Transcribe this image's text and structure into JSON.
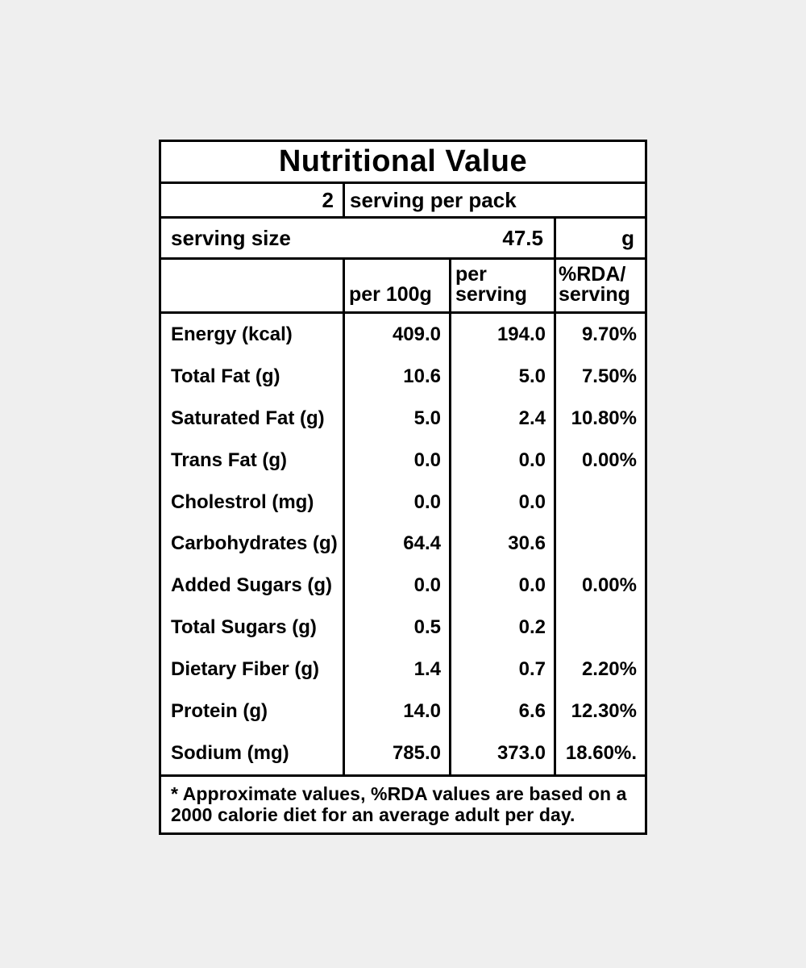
{
  "canvas": {
    "background_color": "#efefef",
    "table_background_color": "#ffffff",
    "border_color": "#000000",
    "text_color": "#000000"
  },
  "label": {
    "title": "Nutritional Value",
    "pack_row": {
      "count": "2",
      "text": "serving per pack"
    },
    "serving_size_row": {
      "label": "serving size",
      "value": "47.5",
      "unit": "g"
    },
    "header": {
      "per_100g": "per 100g",
      "per_serving": [
        "per",
        "serving"
      ],
      "rda": [
        "%RDA/",
        "serving"
      ]
    },
    "rows": [
      {
        "label": "Energy (kcal)",
        "per_100g": "409.0",
        "per_serving": "194.0",
        "rda": "9.70%"
      },
      {
        "label": "Total Fat (g)",
        "per_100g": "10.6",
        "per_serving": "5.0",
        "rda": "7.50%"
      },
      {
        "label": "Saturated Fat (g)",
        "per_100g": "5.0",
        "per_serving": "2.4",
        "rda": "10.80%"
      },
      {
        "label": "Trans Fat (g)",
        "per_100g": "0.0",
        "per_serving": "0.0",
        "rda": "0.00%"
      },
      {
        "label": "Cholestrol (mg)",
        "per_100g": "0.0",
        "per_serving": "0.0",
        "rda": ""
      },
      {
        "label": "Carbohydrates (g)",
        "per_100g": "64.4",
        "per_serving": "30.6",
        "rda": ""
      },
      {
        "label": "Added Sugars (g)",
        "per_100g": "0.0",
        "per_serving": "0.0",
        "rda": "0.00%"
      },
      {
        "label": "Total Sugars (g)",
        "per_100g": "0.5",
        "per_serving": "0.2",
        "rda": ""
      },
      {
        "label": "Dietary Fiber (g)",
        "per_100g": "1.4",
        "per_serving": "0.7",
        "rda": "2.20%"
      },
      {
        "label": "Protein (g)",
        "per_100g": "14.0",
        "per_serving": "6.6",
        "rda": "12.30%"
      },
      {
        "label": "Sodium (mg)",
        "per_100g": "785.0",
        "per_serving": "373.0",
        "rda": "18.60%."
      }
    ],
    "footnote": [
      "* Approximate values, %RDA values are based on a",
      "2000 calorie diet for an average adult per day."
    ]
  }
}
